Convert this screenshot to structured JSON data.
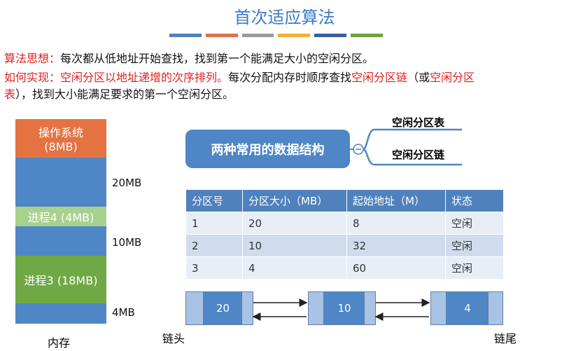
{
  "title": "首次适应算法",
  "idea": {
    "label": "算法思想：",
    "text": "每次都从低地址开始查找，找到第一个能满足大小的空闲分区。"
  },
  "implementation": {
    "label": "如何实现：",
    "segments": [
      "空闲分区以地址递增的次序排列。",
      "每次分配内存时顺序查找",
      "空闲分区链",
      "（或",
      "空闲分区",
      "表",
      "），找到大小能满足要求的第一个空闲分区。"
    ]
  },
  "memory": {
    "os": {
      "label": "操作系统",
      "size": "(8MB)"
    },
    "process4": "进程4 (4MB)",
    "process3": "进程3 (18MB)",
    "free_sizes": [
      "20MB",
      "10MB",
      "4MB"
    ],
    "caption": "内存"
  },
  "mindmap": {
    "center": "两种常用的数据结构",
    "branches": [
      "空闲分区表",
      "空闲分区链"
    ]
  },
  "table": {
    "header": [
      "分区号",
      "分区大小（MB）",
      "起始地址（M）",
      "状态"
    ],
    "rows": [
      [
        1,
        20,
        8,
        "空闲"
      ],
      [
        2,
        10,
        32,
        "空闲"
      ],
      [
        3,
        4,
        60,
        "空闲"
      ]
    ]
  },
  "list": {
    "nodes": [
      20,
      10,
      4
    ],
    "head": "链头",
    "tail": "链尾"
  }
}
